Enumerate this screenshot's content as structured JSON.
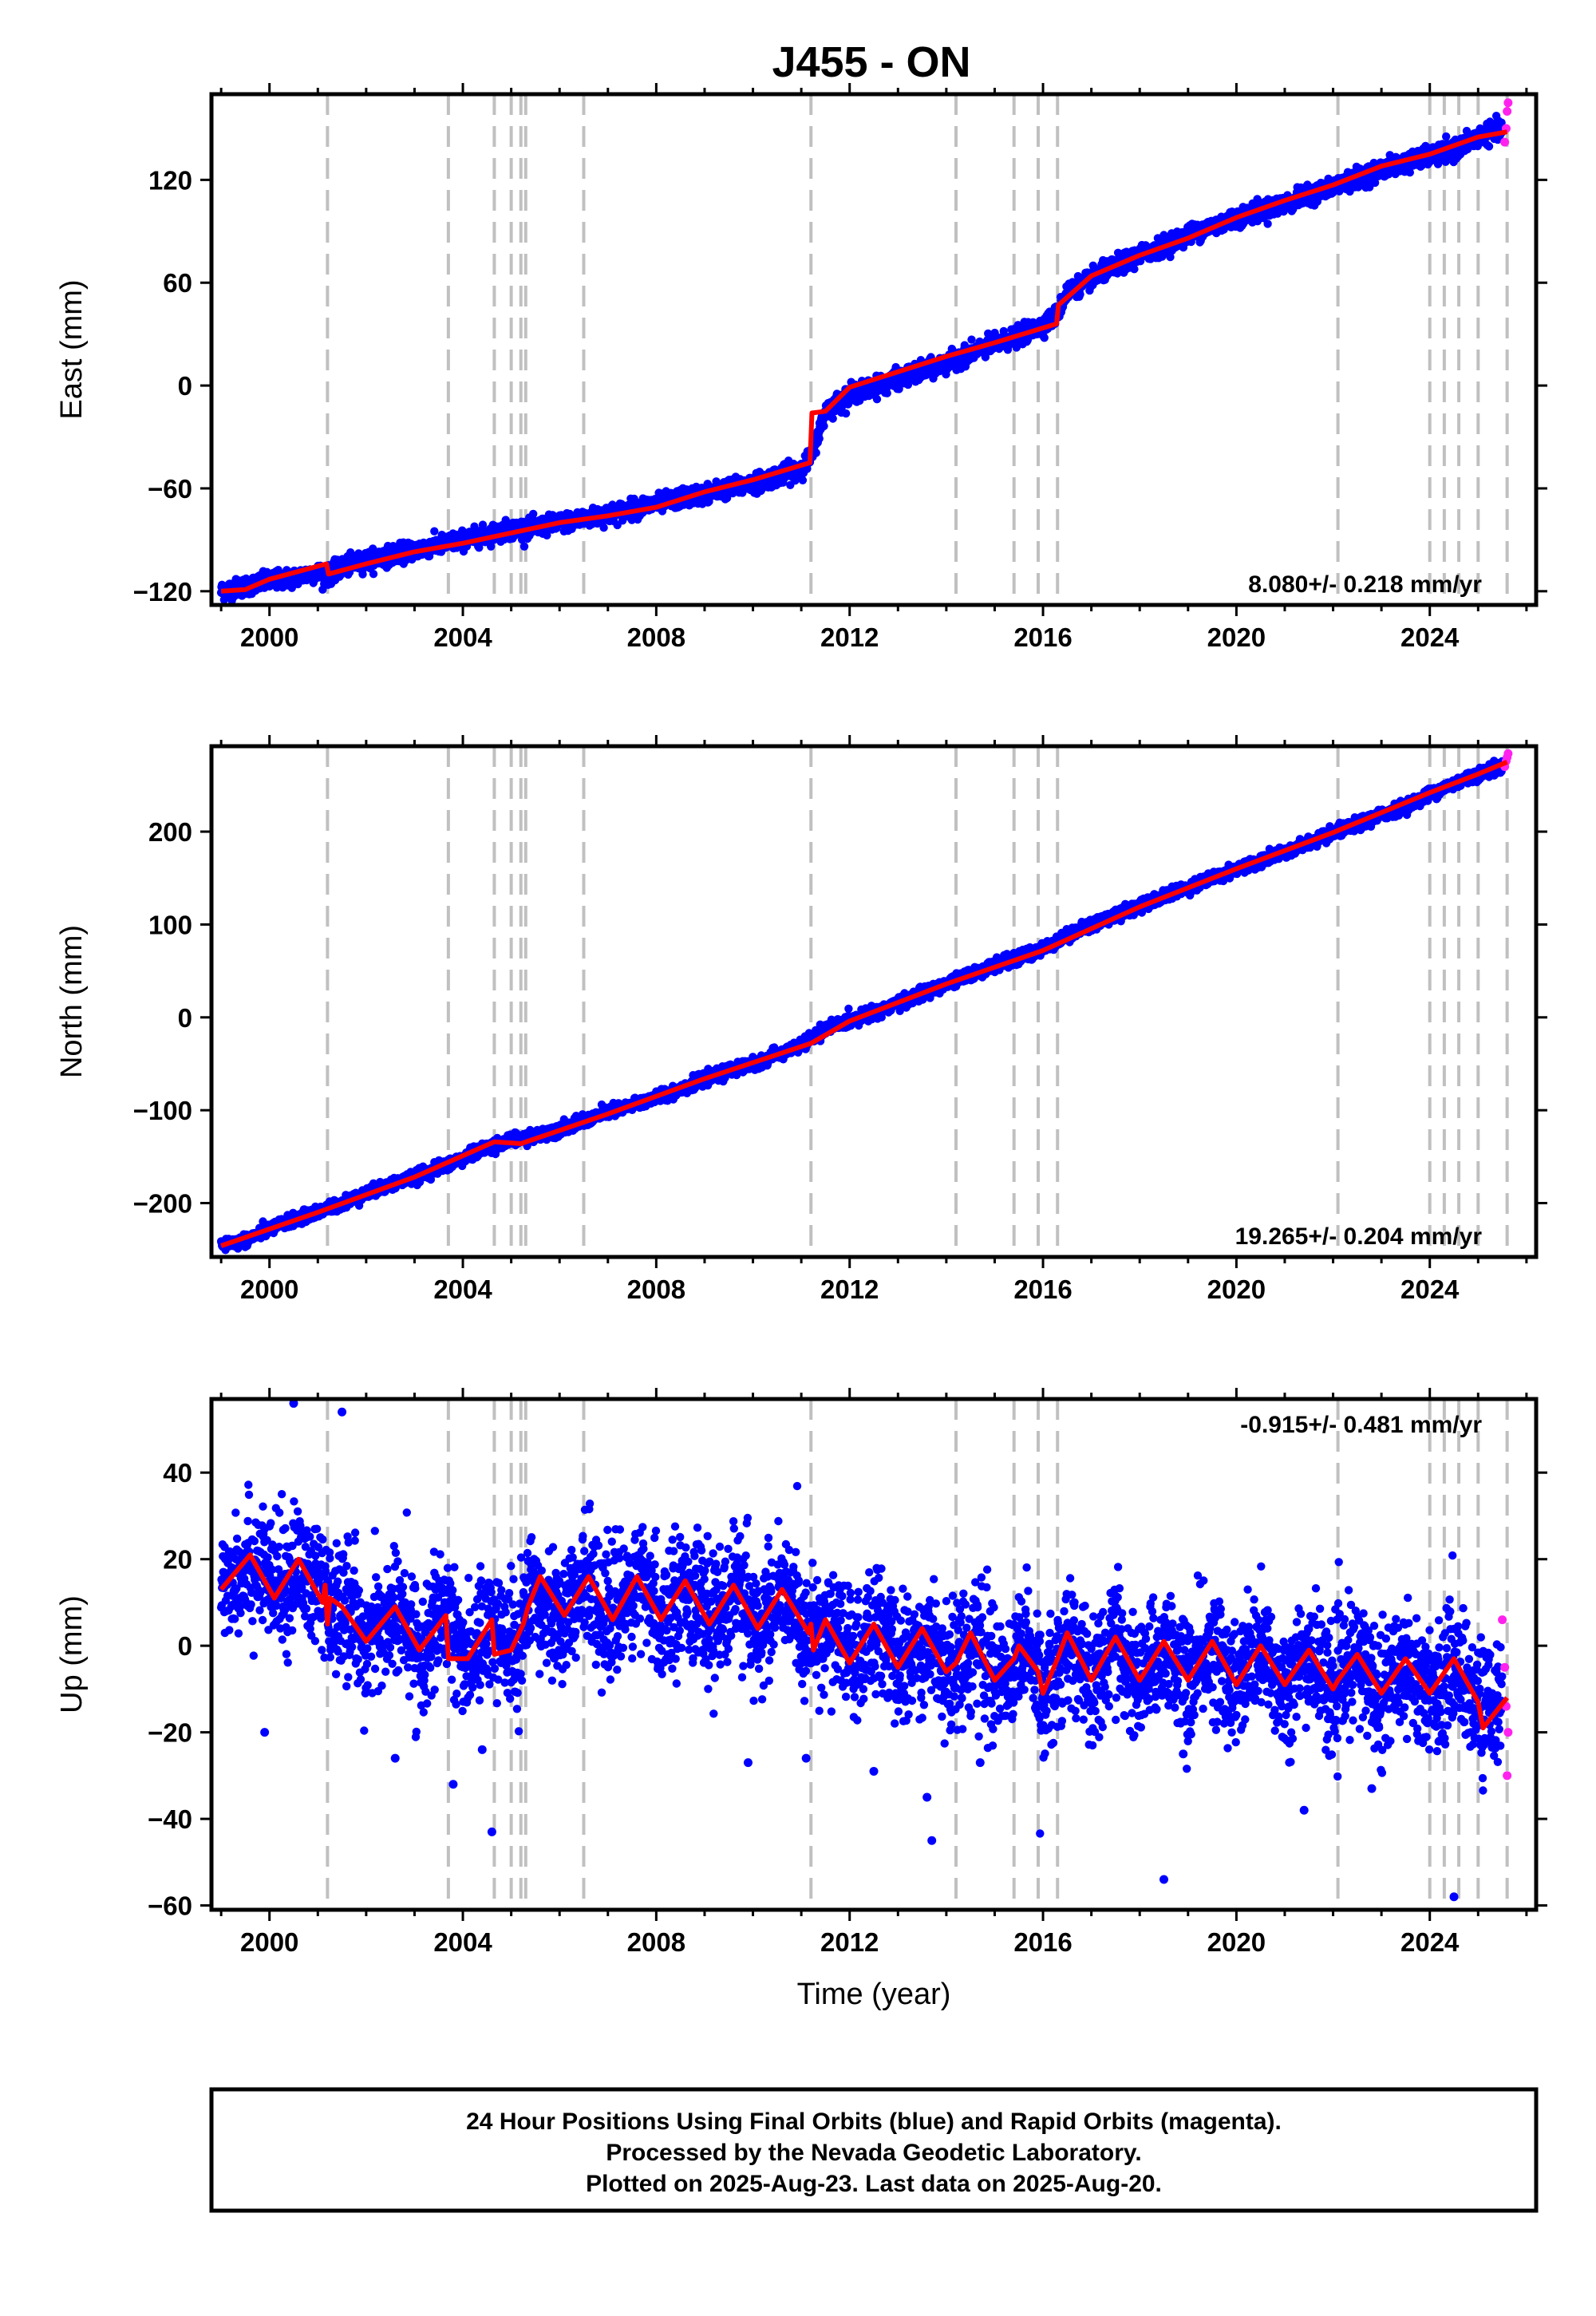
{
  "title": "J455 - ON",
  "colors": {
    "final_points": "#0000ff",
    "rapid_points": "#ff22ee",
    "model_line": "#ff0000",
    "event_line": "#c0c0c0",
    "frame": "#000000"
  },
  "chart_data": [
    {
      "type": "scatter",
      "component": "east",
      "ylabel": "East (mm)",
      "xlabel": "",
      "xlim": [
        1998.8,
        2026.2
      ],
      "ylim": [
        -128,
        170
      ],
      "yticks": [
        -120,
        -60,
        0,
        60,
        120
      ],
      "xticks": [
        2000,
        2004,
        2008,
        2012,
        2016,
        2020,
        2024
      ],
      "rate_label": "8.080+/- 0.218 mm/yr",
      "rate_position": "bottom-right",
      "grid": false,
      "event_lines": [
        2001.2,
        2003.7,
        2004.65,
        2005.0,
        2005.2,
        2005.3,
        2006.5,
        2011.2,
        2014.2,
        2015.4,
        2015.9,
        2016.3,
        2022.1,
        2024.0,
        2024.3,
        2024.6,
        2025.0,
        2025.6
      ],
      "series": [
        {
          "role": "final",
          "x": [
            1999.0,
            1999.5,
            2000.0,
            2000.5,
            2001.0,
            2001.2,
            2001.5,
            2002.0,
            2002.5,
            2003.0,
            2003.5,
            2004.0,
            2004.5,
            2005.0,
            2005.5,
            2006.0,
            2006.5,
            2007.0,
            2007.5,
            2008.0,
            2008.5,
            2009.0,
            2009.5,
            2010.0,
            2010.5,
            2011.0,
            2011.2,
            2011.5,
            2012.0,
            2012.5,
            2013.0,
            2013.5,
            2014.0,
            2014.5,
            2015.0,
            2015.5,
            2016.0,
            2016.3,
            2016.5,
            2017.0,
            2017.5,
            2018.0,
            2018.5,
            2019.0,
            2019.5,
            2020.0,
            2020.5,
            2021.0,
            2021.5,
            2022.0,
            2022.5,
            2023.0,
            2023.5,
            2024.0,
            2024.5,
            2025.0,
            2025.3,
            2025.5
          ],
          "y": [
            -120,
            -117,
            -114,
            -112,
            -109,
            -111,
            -106,
            -102,
            -99,
            -96,
            -93,
            -90,
            -87,
            -84,
            -83,
            -80,
            -78,
            -75,
            -72,
            -69,
            -66,
            -63,
            -60,
            -57,
            -53,
            -48,
            -42,
            -15,
            -5,
            -1,
            4,
            8,
            13,
            19,
            24,
            29,
            35,
            42,
            55,
            62,
            70,
            76,
            82,
            88,
            93,
            98,
            102,
            106,
            111,
            116,
            121,
            126,
            130,
            134,
            137,
            145,
            148,
            150
          ]
        },
        {
          "role": "rapid",
          "x": [
            2025.55,
            2025.58,
            2025.6,
            2025.62
          ],
          "y": [
            142,
            150,
            160,
            165
          ]
        },
        {
          "role": "model",
          "x": [
            1999.0,
            1999.5,
            2000.0,
            2001.18,
            2001.22,
            2002.0,
            2003.0,
            2004.0,
            2005.0,
            2006.0,
            2007.0,
            2008.0,
            2009.0,
            2010.0,
            2011.18,
            2011.22,
            2011.5,
            2012.0,
            2013.0,
            2014.0,
            2015.0,
            2016.28,
            2016.32,
            2017.0,
            2018.0,
            2019.0,
            2020.0,
            2021.0,
            2022.0,
            2023.0,
            2024.0,
            2025.0,
            2025.6
          ],
          "y": [
            -120,
            -119,
            -113,
            -104,
            -110,
            -104,
            -97,
            -92,
            -86,
            -80,
            -76,
            -71,
            -62,
            -55,
            -45,
            -16,
            -15,
            -1,
            8,
            17,
            25,
            36,
            47,
            64,
            76,
            86,
            98,
            108,
            117,
            128,
            135,
            145,
            148
          ]
        }
      ]
    },
    {
      "type": "scatter",
      "component": "north",
      "ylabel": "North (mm)",
      "xlabel": "",
      "xlim": [
        1998.8,
        2026.2
      ],
      "ylim": [
        -258,
        292
      ],
      "yticks": [
        -200,
        -100,
        0,
        100,
        200
      ],
      "xticks": [
        2000,
        2004,
        2008,
        2012,
        2016,
        2020,
        2024
      ],
      "rate_label": "19.265+/- 0.204 mm/yr",
      "rate_position": "bottom-right",
      "grid": false,
      "event_lines": [
        2001.2,
        2003.7,
        2004.65,
        2005.0,
        2005.2,
        2005.3,
        2006.5,
        2011.2,
        2014.2,
        2015.4,
        2015.9,
        2016.3,
        2022.1,
        2024.0,
        2024.3,
        2024.6,
        2025.0,
        2025.6
      ],
      "series": [
        {
          "role": "final",
          "x": [
            1999.0,
            1999.5,
            2000.0,
            2000.5,
            2001.0,
            2001.5,
            2002.0,
            2002.5,
            2003.0,
            2003.5,
            2004.0,
            2004.5,
            2005.0,
            2005.5,
            2006.0,
            2006.5,
            2007.0,
            2007.5,
            2008.0,
            2008.5,
            2009.0,
            2009.5,
            2010.0,
            2010.5,
            2011.0,
            2011.5,
            2012.0,
            2012.5,
            2013.0,
            2013.5,
            2014.0,
            2014.5,
            2015.0,
            2015.5,
            2016.0,
            2016.5,
            2017.0,
            2017.5,
            2018.0,
            2018.5,
            2019.0,
            2019.5,
            2020.0,
            2020.5,
            2021.0,
            2021.5,
            2022.0,
            2022.5,
            2023.0,
            2023.5,
            2024.0,
            2024.5,
            2025.0,
            2025.5
          ],
          "y": [
            -245,
            -240,
            -228,
            -218,
            -210,
            -200,
            -190,
            -180,
            -172,
            -162,
            -152,
            -140,
            -132,
            -128,
            -120,
            -112,
            -102,
            -95,
            -86,
            -77,
            -67,
            -58,
            -50,
            -40,
            -30,
            -12,
            -4,
            6,
            15,
            25,
            36,
            46,
            56,
            64,
            74,
            88,
            100,
            110,
            120,
            130,
            140,
            150,
            160,
            168,
            178,
            188,
            198,
            208,
            218,
            228,
            240,
            252,
            262,
            270
          ]
        },
        {
          "role": "rapid",
          "x": [
            2025.55,
            2025.58,
            2025.6,
            2025.62
          ],
          "y": [
            270,
            276,
            280,
            284
          ]
        },
        {
          "role": "model",
          "x": [
            1999.0,
            2001.0,
            2003.0,
            2004.65,
            2005.2,
            2007.0,
            2009.0,
            2011.2,
            2012.0,
            2014.0,
            2016.0,
            2018.0,
            2020.0,
            2022.0,
            2024.0,
            2025.0,
            2025.6
          ],
          "y": [
            -246,
            -210,
            -172,
            -134,
            -136,
            -104,
            -66,
            -28,
            -4,
            36,
            72,
            119,
            160,
            199,
            242,
            262,
            275
          ]
        }
      ]
    },
    {
      "type": "scatter",
      "component": "up",
      "ylabel": "Up (mm)",
      "xlabel": "Time (year)",
      "xlim": [
        1998.8,
        2026.2
      ],
      "ylim": [
        -61,
        57
      ],
      "yticks": [
        -60,
        -40,
        -20,
        0,
        20,
        40
      ],
      "xticks": [
        2000,
        2004,
        2008,
        2012,
        2016,
        2020,
        2024
      ],
      "rate_label": "-0.915+/- 0.481 mm/yr",
      "rate_position": "top-right",
      "grid": false,
      "event_lines": [
        2001.2,
        2003.7,
        2004.65,
        2005.0,
        2005.2,
        2005.3,
        2006.5,
        2011.2,
        2014.2,
        2015.4,
        2015.9,
        2016.3,
        2022.1,
        2024.0,
        2024.3,
        2024.6,
        2025.0,
        2025.6
      ],
      "series": [
        {
          "role": "final",
          "mean": [
            [
              1999.0,
              14
            ],
            [
              1999.6,
              20
            ],
            [
              2000.2,
              12
            ],
            [
              2000.6,
              19
            ],
            [
              2001.1,
              12
            ],
            [
              2001.3,
              6
            ],
            [
              2001.6,
              10
            ],
            [
              2002.0,
              1
            ],
            [
              2002.6,
              8
            ],
            [
              2003.2,
              -2
            ],
            [
              2003.6,
              7
            ],
            [
              2004.1,
              -3
            ],
            [
              2004.6,
              6
            ],
            [
              2005.1,
              -3
            ],
            [
              2005.4,
              14
            ],
            [
              2006.0,
              6
            ],
            [
              2006.6,
              15
            ],
            [
              2007.1,
              6
            ],
            [
              2007.6,
              15
            ],
            [
              2008.1,
              6
            ],
            [
              2008.6,
              14
            ],
            [
              2009.1,
              5
            ],
            [
              2009.6,
              13
            ],
            [
              2010.1,
              4
            ],
            [
              2010.6,
              12
            ],
            [
              2011.1,
              3
            ],
            [
              2011.3,
              1
            ],
            [
              2011.6,
              5
            ],
            [
              2012.1,
              -4
            ],
            [
              2012.6,
              4
            ],
            [
              2013.1,
              -5
            ],
            [
              2013.6,
              2
            ],
            [
              2014.1,
              -6
            ],
            [
              2014.6,
              1
            ],
            [
              2015.1,
              -8
            ],
            [
              2015.6,
              0
            ],
            [
              2016.0,
              -11
            ],
            [
              2016.5,
              1
            ],
            [
              2017.0,
              -8
            ],
            [
              2017.5,
              1
            ],
            [
              2018.0,
              -9
            ],
            [
              2018.5,
              0
            ],
            [
              2019.0,
              -9
            ],
            [
              2019.5,
              0
            ],
            [
              2020.0,
              -10
            ],
            [
              2020.5,
              -1
            ],
            [
              2021.0,
              -10
            ],
            [
              2021.5,
              -2
            ],
            [
              2022.0,
              -11
            ],
            [
              2022.5,
              -3
            ],
            [
              2023.0,
              -11
            ],
            [
              2023.5,
              -3
            ],
            [
              2024.0,
              -12
            ],
            [
              2024.5,
              -4
            ],
            [
              2025.0,
              -14
            ],
            [
              2025.5,
              -13
            ]
          ],
          "spread": 8,
          "outliers": [
            [
              2000.5,
              56
            ],
            [
              2001.5,
              54
            ],
            [
              1999.9,
              -20
            ],
            [
              2002.6,
              -26
            ],
            [
              2003.8,
              -32
            ],
            [
              2004.4,
              -24
            ],
            [
              2004.6,
              -43
            ],
            [
              2009.9,
              -27
            ],
            [
              2011.1,
              -26
            ],
            [
              2012.5,
              -29
            ],
            [
              2013.6,
              -35
            ],
            [
              2013.7,
              -45
            ],
            [
              2014.7,
              -27
            ],
            [
              2018.5,
              -54
            ],
            [
              2021.4,
              -38
            ],
            [
              2022.8,
              -33
            ],
            [
              2024.5,
              -58
            ],
            [
              2024.2,
              -22
            ],
            [
              2018.9,
              -25
            ]
          ]
        },
        {
          "role": "rapid",
          "x": [
            2025.5,
            2025.55,
            2025.58,
            2025.6,
            2025.62
          ],
          "y": [
            6,
            -5,
            -14,
            -30,
            -20
          ]
        },
        {
          "role": "model",
          "x": [
            1999.0,
            1999.6,
            2000.1,
            2000.6,
            2001.1,
            2001.15,
            2001.2,
            2001.25,
            2001.5,
            2002.0,
            2002.6,
            2003.1,
            2003.65,
            2003.7,
            2004.1,
            2004.6,
            2004.65,
            2005.0,
            2005.25,
            2005.35,
            2005.6,
            2006.1,
            2006.6,
            2007.1,
            2007.6,
            2008.1,
            2008.6,
            2009.1,
            2009.6,
            2010.1,
            2010.6,
            2011.15,
            2011.2,
            2011.25,
            2011.5,
            2012.0,
            2012.5,
            2013.0,
            2013.5,
            2014.0,
            2014.2,
            2014.5,
            2015.0,
            2015.4,
            2015.5,
            2015.9,
            2016.0,
            2016.3,
            2016.5,
            2017.0,
            2017.5,
            2018.0,
            2018.5,
            2019.0,
            2019.5,
            2020.0,
            2020.5,
            2021.0,
            2021.5,
            2022.0,
            2022.1,
            2022.5,
            2023.0,
            2023.5,
            2024.0,
            2024.5,
            2025.0,
            2025.1,
            2025.6
          ],
          "y": [
            13,
            21,
            11,
            20,
            10,
            14,
            5,
            11,
            9,
            1,
            9,
            -1,
            7,
            -3,
            -3,
            6,
            -2,
            -1,
            5,
            9,
            16,
            7,
            16,
            6,
            16,
            6,
            15,
            5,
            14,
            4,
            13,
            3,
            5,
            -1,
            6,
            -4,
            5,
            -5,
            4,
            -6,
            -4,
            3,
            -8,
            -3,
            0,
            -6,
            -11,
            -3,
            3,
            -8,
            2,
            -8,
            1,
            -8,
            1,
            -9,
            0,
            -9,
            -1,
            -10,
            -8,
            -2,
            -11,
            -3,
            -11,
            -3,
            -13,
            -19,
            -12
          ]
        }
      ]
    }
  ],
  "footer": {
    "line1": "24 Hour Positions Using Final Orbits (blue) and Rapid Orbits (magenta).",
    "line2": "Processed by the Nevada Geodetic Laboratory.",
    "line3": "Plotted on 2025-Aug-23. Last data on 2025-Aug-20."
  }
}
